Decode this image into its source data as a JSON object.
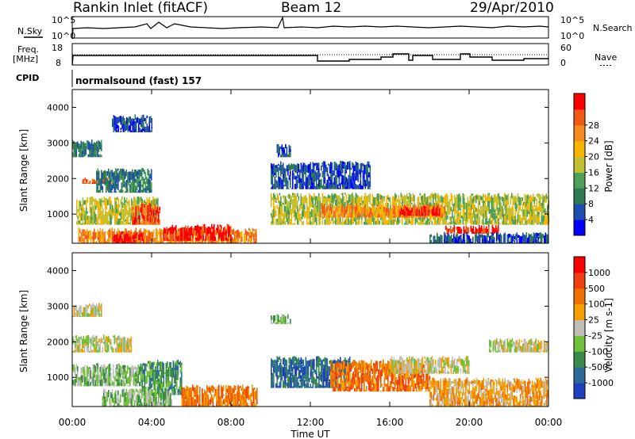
{
  "header": {
    "station": "Rankin Inlet (fitACF)",
    "beam": "Beam 12",
    "date": "29/Apr/2010"
  },
  "top_panels": {
    "nsky_label": "N.Sky",
    "nsearch_label": "N.Search",
    "freq_label_1": "Freq.",
    "freq_label_2": "[MHz]",
    "nave_label": "Nave",
    "cpid_label": "CPID",
    "cpid_text": "normalsound (fast) 157",
    "noise_ticks_left": [
      "10^5",
      "10^0"
    ],
    "noise_ticks_right": [
      "10^5",
      "10^0"
    ],
    "freq_ticks": [
      "18",
      "8"
    ],
    "nave_ticks": [
      "60",
      "0"
    ]
  },
  "chart_data": [
    {
      "type": "heatmap",
      "title": "",
      "xlabel": "Time UT",
      "ylabel": "Slant Range [km]",
      "x_ticks": [
        "00:00",
        "04:00",
        "08:00",
        "12:00",
        "16:00",
        "20:00",
        "00:00"
      ],
      "y_ticks": [
        "1000",
        "2000",
        "3000",
        "4000"
      ],
      "ylim": [
        180,
        4500
      ],
      "colorbar": {
        "label": "Power [dB]",
        "ticks": [
          "4",
          "8",
          "12",
          "16",
          "20",
          "24",
          "28"
        ],
        "colors": [
          "#0000ff",
          "#1e4fb0",
          "#2d7a55",
          "#4ca05a",
          "#bfc032",
          "#f7b500",
          "#f58a1e",
          "#f05a14",
          "#ff0000"
        ]
      },
      "regions": [
        {
          "t0": 0.3,
          "t1": 9.3,
          "r0": 180,
          "r1": 620,
          "level": 6
        },
        {
          "t0": 2.0,
          "t1": 3.6,
          "r0": 180,
          "r1": 520,
          "level": 8
        },
        {
          "t0": 4.6,
          "t1": 8.0,
          "r0": 250,
          "r1": 720,
          "level": 8
        },
        {
          "t0": 0.2,
          "t1": 4.3,
          "r0": 700,
          "r1": 1500,
          "level": 4
        },
        {
          "t0": 3.0,
          "t1": 4.4,
          "r0": 700,
          "r1": 1300,
          "level": 7
        },
        {
          "t0": 0.5,
          "t1": 2.2,
          "r0": 1850,
          "r1": 2050,
          "level": 7
        },
        {
          "t0": 0.0,
          "t1": 1.5,
          "r0": 2600,
          "r1": 3100,
          "level": 2
        },
        {
          "t0": 1.2,
          "t1": 4.0,
          "r0": 1600,
          "r1": 2300,
          "level": 2
        },
        {
          "t0": 2.0,
          "t1": 4.0,
          "r0": 3300,
          "r1": 3800,
          "level": 1
        },
        {
          "t0": 10.0,
          "t1": 24.0,
          "r0": 700,
          "r1": 1600,
          "level": 4
        },
        {
          "t0": 12.5,
          "t1": 18.8,
          "r0": 900,
          "r1": 1300,
          "level": 6
        },
        {
          "t0": 16.5,
          "t1": 18.6,
          "r0": 950,
          "r1": 1250,
          "level": 8
        },
        {
          "t0": 18.8,
          "t1": 21.5,
          "r0": 450,
          "r1": 700,
          "level": 8
        },
        {
          "t0": 18.0,
          "t1": 24.0,
          "r0": 180,
          "r1": 500,
          "level": 1
        },
        {
          "t0": 10.0,
          "t1": 15.0,
          "r0": 1700,
          "r1": 2500,
          "level": 1
        },
        {
          "t0": 10.3,
          "t1": 11.0,
          "r0": 2600,
          "r1": 3000,
          "level": 1
        }
      ]
    },
    {
      "type": "heatmap",
      "title": "",
      "xlabel": "Time UT",
      "ylabel": "Slant Range [km]",
      "x_ticks": [
        "00:00",
        "04:00",
        "08:00",
        "12:00",
        "16:00",
        "20:00",
        "00:00"
      ],
      "y_ticks": [
        "1000",
        "2000",
        "3000",
        "4000"
      ],
      "ylim": [
        180,
        4500
      ],
      "colorbar": {
        "label": "Velocity [m s-1]",
        "ticks": [
          "1000",
          "500",
          "100",
          "25",
          "-25",
          "-100",
          "-500",
          "-1000"
        ],
        "colors": [
          "#1f3fbf",
          "#2a6b9a",
          "#3a8a4a",
          "#70c03a",
          "#bfbfb8",
          "#f5a000",
          "#f07000",
          "#ee4010",
          "#ff0000"
        ]
      },
      "regions": [
        {
          "t0": 0.0,
          "t1": 1.5,
          "r0": 2700,
          "r1": 3100,
          "level": 4
        },
        {
          "t0": 0.0,
          "t1": 3.0,
          "r0": 1700,
          "r1": 2200,
          "level": 4
        },
        {
          "t0": 0.0,
          "t1": 3.5,
          "r0": 750,
          "r1": 1400,
          "level": 3
        },
        {
          "t0": 3.5,
          "t1": 5.5,
          "r0": 500,
          "r1": 1500,
          "level": 2
        },
        {
          "t0": 1.5,
          "t1": 5.0,
          "r0": 180,
          "r1": 700,
          "level": 3
        },
        {
          "t0": 5.5,
          "t1": 9.3,
          "r0": 180,
          "r1": 800,
          "level": 6
        },
        {
          "t0": 10.0,
          "t1": 14.0,
          "r0": 700,
          "r1": 1600,
          "level": 1
        },
        {
          "t0": 13.0,
          "t1": 18.0,
          "r0": 600,
          "r1": 1500,
          "level": 6
        },
        {
          "t0": 16.0,
          "t1": 20.0,
          "r0": 1100,
          "r1": 1600,
          "level": 4
        },
        {
          "t0": 18.0,
          "t1": 24.0,
          "r0": 180,
          "r1": 1000,
          "level": 5
        },
        {
          "t0": 21.0,
          "t1": 24.0,
          "r0": 1700,
          "r1": 2100,
          "level": 4
        },
        {
          "t0": 10.0,
          "t1": 11.0,
          "r0": 2500,
          "r1": 2800,
          "level": 3
        }
      ]
    }
  ]
}
